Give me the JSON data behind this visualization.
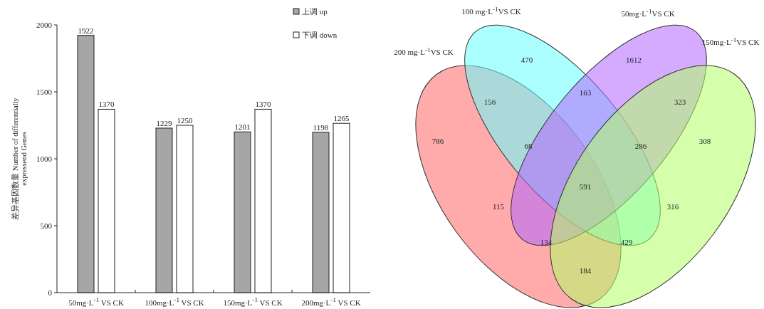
{
  "chart_data": [
    {
      "type": "bar",
      "ylabel": "差异基因数量 Number of differentially expressend Genes",
      "categories": [
        "50mg·L$^{-1}$ VS CK",
        "100mg·L$^{-1}$ VS CK",
        "150mg·L$^{-1}$ VS CK",
        "200mg·L$^{-1}$ VS CK"
      ],
      "series": [
        {
          "name": "上调 up",
          "color": "#a6a6a6",
          "values": [
            1922,
            1229,
            1201,
            1198
          ]
        },
        {
          "name": "下调 down",
          "color": "#ffffff",
          "values": [
            1370,
            1250,
            1370,
            1265
          ]
        }
      ],
      "ylim": [
        0,
        2000
      ],
      "yticks": [
        0,
        500,
        1000,
        1500,
        2000
      ],
      "data_labels": true,
      "legend": "top right"
    },
    {
      "type": "other",
      "categories": [
        null,
        null,
        null,
        null,
        null,
        null,
        null,
        null,
        null,
        null,
        null,
        null,
        null,
        null,
        null
      ],
      "values": [
        470,
        1612,
        156,
        163,
        323,
        786,
        68,
        286,
        308,
        591,
        115,
        316,
        134,
        429,
        184
      ],
      "data_labels": true,
      "annotations": [
        "200 mg·L$^{-1}$VS CK",
        "100 mg·L$^{-1}$VS CK",
        "50mg·L$^{-1}$VS CK",
        "150mg·L$^{-1}$VS CK"
      ]
    }
  ]
}
